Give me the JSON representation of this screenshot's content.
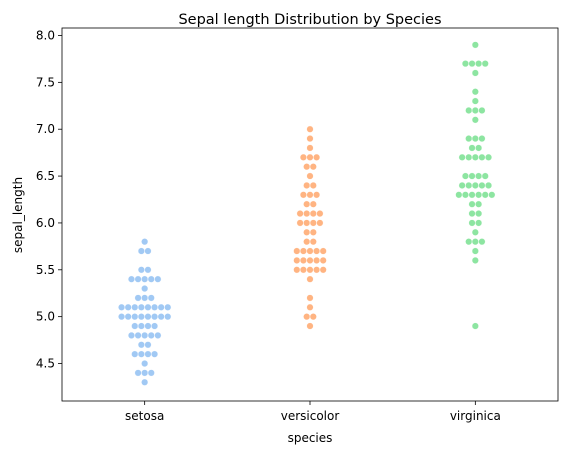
{
  "chart_data": {
    "type": "scatter",
    "subtype": "swarm",
    "title": "Sepal length Distribution by Species",
    "xlabel": "species",
    "ylabel": "sepal_length",
    "ylim": [
      4.1,
      8.08
    ],
    "y_ticks": [
      "4.5",
      "5.0",
      "5.5",
      "6.0",
      "6.5",
      "7.0",
      "7.5",
      "8.0"
    ],
    "categories": [
      "setosa",
      "versicolor",
      "virginica"
    ],
    "grid": false,
    "legend": "none",
    "series": [
      {
        "color": "#a1c9f4",
        "values": [
          5.8,
          5.7,
          5.7,
          5.5,
          5.5,
          5.4,
          5.4,
          5.4,
          5.4,
          5.4,
          5.3,
          5.2,
          5.2,
          5.2,
          5.1,
          5.1,
          5.1,
          5.1,
          5.1,
          5.1,
          5.1,
          5.1,
          5.0,
          5.0,
          5.0,
          5.0,
          5.0,
          5.0,
          5.0,
          5.0,
          4.9,
          4.9,
          4.9,
          4.9,
          4.8,
          4.8,
          4.8,
          4.8,
          4.8,
          4.7,
          4.7,
          4.6,
          4.6,
          4.6,
          4.6,
          4.5,
          4.4,
          4.4,
          4.4,
          4.3
        ]
      },
      {
        "color": "#ffb482",
        "values": [
          7.0,
          6.9,
          6.8,
          6.7,
          6.7,
          6.7,
          6.6,
          6.6,
          6.5,
          6.4,
          6.4,
          6.3,
          6.3,
          6.3,
          6.2,
          6.2,
          6.1,
          6.1,
          6.1,
          6.1,
          6.0,
          6.0,
          6.0,
          6.0,
          5.9,
          5.9,
          5.8,
          5.8,
          5.7,
          5.7,
          5.7,
          5.7,
          5.7,
          5.6,
          5.6,
          5.6,
          5.6,
          5.6,
          5.5,
          5.5,
          5.5,
          5.5,
          5.5,
          5.4,
          5.2,
          5.1,
          5.0,
          5.0,
          4.9
        ]
      },
      {
        "color": "#8de5a1",
        "values": [
          7.9,
          7.7,
          7.7,
          7.7,
          7.7,
          7.6,
          7.4,
          7.3,
          7.2,
          7.2,
          7.2,
          7.1,
          6.9,
          6.9,
          6.9,
          6.8,
          6.8,
          6.7,
          6.7,
          6.7,
          6.7,
          6.7,
          6.5,
          6.5,
          6.5,
          6.5,
          6.4,
          6.4,
          6.4,
          6.4,
          6.4,
          6.3,
          6.3,
          6.3,
          6.3,
          6.3,
          6.3,
          6.2,
          6.2,
          6.1,
          6.1,
          6.0,
          6.0,
          5.9,
          5.8,
          5.8,
          5.8,
          5.7,
          5.6,
          4.9
        ]
      }
    ]
  }
}
